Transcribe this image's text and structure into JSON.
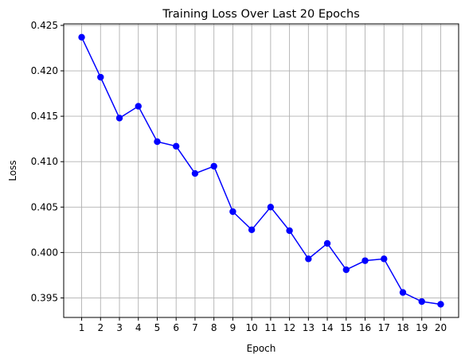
{
  "chart_data": {
    "type": "line",
    "title": "Training Loss Over Last 20 Epochs",
    "xlabel": "Epoch",
    "ylabel": "Loss",
    "x": [
      1,
      2,
      3,
      4,
      5,
      6,
      7,
      8,
      9,
      10,
      11,
      12,
      13,
      14,
      15,
      16,
      17,
      18,
      19,
      20
    ],
    "series": [
      {
        "values": [
          0.4237,
          0.4193,
          0.4148,
          0.4161,
          0.4122,
          0.4117,
          0.4087,
          0.4095,
          0.4045,
          0.4025,
          0.405,
          0.4024,
          0.3993,
          0.401,
          0.3981,
          0.3991,
          0.3993,
          0.3956,
          0.3946,
          0.3943
        ],
        "color": "#0000ff",
        "marker": "circle"
      }
    ],
    "xticks": [
      "1",
      "2",
      "3",
      "4",
      "5",
      "6",
      "7",
      "8",
      "9",
      "10",
      "11",
      "12",
      "13",
      "14",
      "15",
      "16",
      "17",
      "18",
      "19",
      "20"
    ],
    "yticks": [
      "0.395",
      "0.400",
      "0.405",
      "0.410",
      "0.415",
      "0.420",
      "0.425"
    ],
    "ytick_values": [
      0.395,
      0.4,
      0.405,
      0.41,
      0.415,
      0.42,
      0.425
    ],
    "xlim": [
      0.05,
      20.95
    ],
    "ylim": [
      0.39285,
      0.42517
    ],
    "grid": true
  }
}
